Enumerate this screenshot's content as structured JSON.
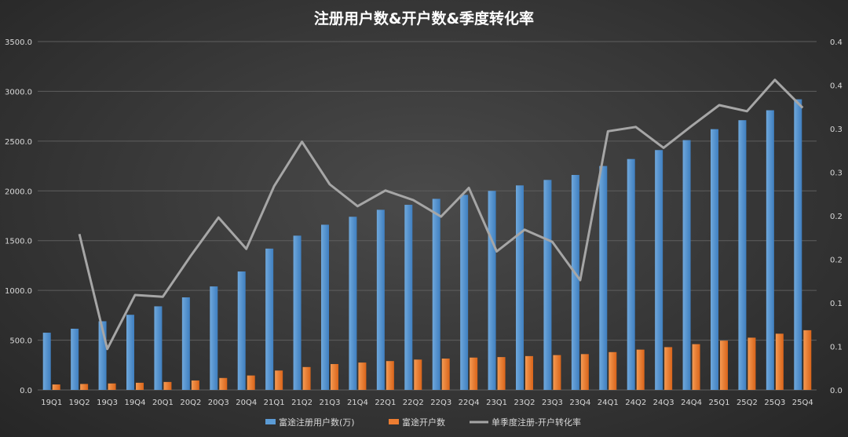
{
  "chart_data": {
    "type": "bar",
    "title": "注册用户数&开户数&季度转化率",
    "categories": [
      "19Q1",
      "19Q2",
      "19Q3",
      "19Q4",
      "20Q1",
      "20Q2",
      "20Q3",
      "20Q4",
      "21Q1",
      "21Q2",
      "21Q3",
      "21Q4",
      "22Q1",
      "22Q2",
      "22Q3",
      "22Q4",
      "23Q1",
      "23Q2",
      "23Q3",
      "23Q4",
      "24Q1",
      "24Q2",
      "24Q3",
      "24Q4",
      "25Q1",
      "25Q2",
      "25Q3",
      "25Q4"
    ],
    "series": [
      {
        "name": "富途注册用户数(万)",
        "type": "bar",
        "axis": "left",
        "color": "#5b9bd5",
        "values": [
          575,
          615,
          690,
          755,
          840,
          930,
          1040,
          1190,
          1420,
          1550,
          1660,
          1740,
          1810,
          1860,
          1920,
          1960,
          2000,
          2055,
          2110,
          2160,
          2250,
          2320,
          2410,
          2510,
          2620,
          2710,
          2810,
          2920
        ]
      },
      {
        "name": "富途开户数",
        "type": "bar",
        "axis": "left",
        "color": "#ed7d31",
        "values": [
          55,
          60,
          65,
          72,
          80,
          95,
          120,
          145,
          195,
          230,
          260,
          275,
          290,
          305,
          315,
          325,
          330,
          340,
          350,
          360,
          380,
          405,
          430,
          460,
          495,
          525,
          565,
          600
        ]
      },
      {
        "name": "单季度注册-开户转化率",
        "type": "line",
        "axis": "right",
        "color": "#a6a6a6",
        "values": [
          null,
          0.179,
          0.047,
          0.109,
          0.107,
          0.154,
          0.198,
          0.162,
          0.234,
          0.285,
          0.236,
          0.211,
          0.229,
          0.218,
          0.199,
          0.232,
          0.159,
          0.184,
          0.17,
          0.126,
          0.297,
          0.302,
          0.278,
          0.303,
          0.327,
          0.32,
          0.356,
          0.324
        ]
      }
    ],
    "y_left": {
      "min": 0,
      "max": 3500,
      "ticks": [
        "0.0",
        "500.0",
        "1000.0",
        "1500.0",
        "2000.0",
        "2500.0",
        "3000.0",
        "3500.0"
      ]
    },
    "y_right": {
      "min": 0,
      "max": 0.4,
      "ticks": [
        "0.0",
        "0.1",
        "0.1",
        "0.2",
        "0.2",
        "0.3",
        "0.3",
        "0.4",
        "0.4"
      ]
    },
    "grid": true,
    "legend": "bottom"
  }
}
